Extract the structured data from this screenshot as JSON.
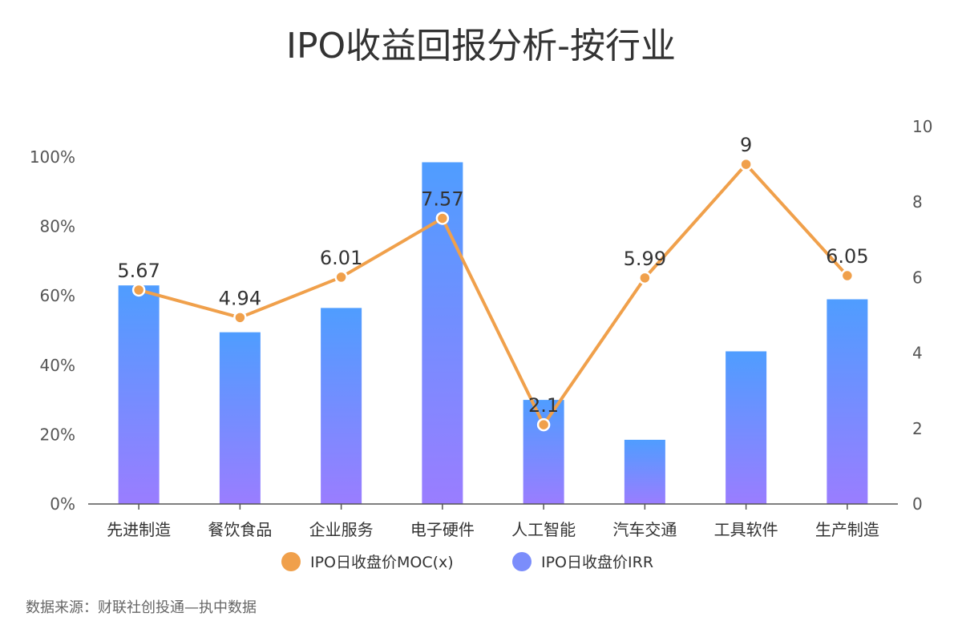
{
  "chart_data": {
    "type": "bar+line",
    "title": "IPO收益回报分析-按行业",
    "categories": [
      "先进制造",
      "餐饮食品",
      "企业服务",
      "电子硬件",
      "人工智能",
      "汽车交通",
      "工具软件",
      "生产制造"
    ],
    "series": [
      {
        "name": "IPO日收盘价IRR",
        "type": "bar",
        "axis": "left",
        "values": [
          63,
          49.5,
          56.5,
          98.5,
          30,
          18.5,
          44,
          59
        ],
        "unit": "%"
      },
      {
        "name": "IPO日收盘价MOC(x)",
        "type": "line",
        "axis": "right",
        "values": [
          5.67,
          4.94,
          6.01,
          7.57,
          2.1,
          5.99,
          9,
          6.05
        ],
        "labels": [
          "5.67",
          "4.94",
          "6.01",
          "7.57",
          "2.1",
          "5.99",
          "9",
          "6.05"
        ]
      }
    ],
    "y_left": {
      "min": 0,
      "max": 100,
      "ticks": [
        "0%",
        "20%",
        "40%",
        "60%",
        "80%",
        "100%"
      ]
    },
    "y_right": {
      "min": 0,
      "max": 10,
      "ticks": [
        "0",
        "2",
        "4",
        "6",
        "8",
        "10"
      ]
    },
    "legend": {
      "placement": "bottom",
      "items": [
        {
          "label": "IPO日收盘价MOC(x)",
          "color": "#f0a04b"
        },
        {
          "label": "IPO日收盘价IRR",
          "color": "#7b8dfb"
        }
      ]
    },
    "colors": {
      "bar_top": "#4f9dff",
      "bar_bottom": "#9a7dff",
      "line": "#f0a04b"
    },
    "source": "数据来源：财联社创投通—执中数据"
  }
}
